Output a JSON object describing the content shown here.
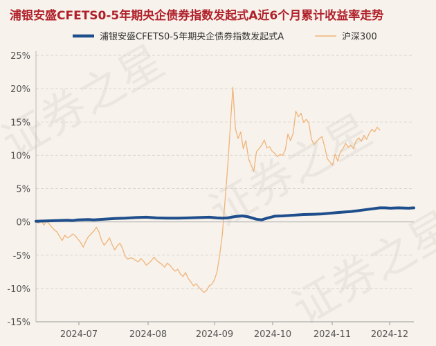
{
  "chart_data": {
    "type": "line",
    "title": "浦银安盛CFETS0-5年期央企债券指数发起式A近6个月累计收益率走势",
    "x_labels": [
      "2024-07",
      "2024-08",
      "2024-09",
      "2024-10",
      "2024-11",
      "2024-12"
    ],
    "yticks": [
      25,
      20,
      15,
      10,
      5,
      0,
      -5,
      -10,
      -15
    ],
    "ylim": [
      -15,
      25
    ],
    "y_unit": "%",
    "grid": "horizontal",
    "legend_position": "top",
    "watermark": "证券之星",
    "series": [
      {
        "name": "浦银安盛CFETS0-5年期央企债券指数发起式A",
        "color": "#1f4e8c",
        "points": [
          [
            0,
            0.1
          ],
          [
            20,
            0.15
          ],
          [
            40,
            0.2
          ],
          [
            60,
            0.25
          ],
          [
            70,
            0.2
          ],
          [
            80,
            0.3
          ],
          [
            100,
            0.35
          ],
          [
            110,
            0.3
          ],
          [
            130,
            0.4
          ],
          [
            150,
            0.5
          ],
          [
            170,
            0.55
          ],
          [
            190,
            0.65
          ],
          [
            210,
            0.7
          ],
          [
            230,
            0.6
          ],
          [
            250,
            0.55
          ],
          [
            270,
            0.55
          ],
          [
            290,
            0.6
          ],
          [
            310,
            0.65
          ],
          [
            330,
            0.7
          ],
          [
            345,
            0.6
          ],
          [
            355,
            0.55
          ],
          [
            365,
            0.6
          ],
          [
            380,
            0.8
          ],
          [
            393,
            0.9
          ],
          [
            405,
            0.75
          ],
          [
            420,
            0.4
          ],
          [
            430,
            0.3
          ],
          [
            440,
            0.55
          ],
          [
            455,
            0.85
          ],
          [
            470,
            0.9
          ],
          [
            490,
            1.0
          ],
          [
            510,
            1.1
          ],
          [
            530,
            1.15
          ],
          [
            545,
            1.2
          ],
          [
            560,
            1.3
          ],
          [
            575,
            1.4
          ],
          [
            590,
            1.5
          ],
          [
            600,
            1.55
          ],
          [
            615,
            1.7
          ],
          [
            630,
            1.85
          ],
          [
            645,
            2.0
          ],
          [
            655,
            2.1
          ],
          [
            665,
            2.1
          ],
          [
            675,
            2.05
          ],
          [
            690,
            2.1
          ],
          [
            710,
            2.05
          ],
          [
            720,
            2.1
          ]
        ]
      },
      {
        "name": "沪深300",
        "color": "#f0b47a",
        "points": [
          [
            0,
            0
          ],
          [
            5,
            -0.2
          ],
          [
            10,
            0.3
          ],
          [
            15,
            -0.5
          ],
          [
            20,
            0.1
          ],
          [
            25,
            -0.3
          ],
          [
            30,
            -0.8
          ],
          [
            35,
            -1.2
          ],
          [
            40,
            -1.5
          ],
          [
            45,
            -2.2
          ],
          [
            50,
            -2.8
          ],
          [
            55,
            -2.0
          ],
          [
            60,
            -2.4
          ],
          [
            65,
            -2.2
          ],
          [
            70,
            -1.8
          ],
          [
            75,
            -2.1
          ],
          [
            80,
            -2.6
          ],
          [
            85,
            -3.1
          ],
          [
            90,
            -3.8
          ],
          [
            95,
            -2.9
          ],
          [
            100,
            -2.2
          ],
          [
            105,
            -1.8
          ],
          [
            110,
            -1.4
          ],
          [
            115,
            -0.8
          ],
          [
            120,
            -1.5
          ],
          [
            125,
            -2.8
          ],
          [
            130,
            -3.5
          ],
          [
            135,
            -3.0
          ],
          [
            140,
            -2.4
          ],
          [
            145,
            -3.4
          ],
          [
            150,
            -4.2
          ],
          [
            155,
            -3.6
          ],
          [
            160,
            -3.2
          ],
          [
            165,
            -4.0
          ],
          [
            170,
            -5.2
          ],
          [
            175,
            -5.6
          ],
          [
            180,
            -5.4
          ],
          [
            185,
            -5.5
          ],
          [
            190,
            -5.8
          ],
          [
            195,
            -6.0
          ],
          [
            200,
            -5.5
          ],
          [
            205,
            -5.9
          ],
          [
            210,
            -6.5
          ],
          [
            215,
            -6.2
          ],
          [
            220,
            -5.8
          ],
          [
            225,
            -5.3
          ],
          [
            230,
            -5.8
          ],
          [
            235,
            -6.1
          ],
          [
            240,
            -6.4
          ],
          [
            245,
            -6.8
          ],
          [
            250,
            -6.2
          ],
          [
            255,
            -6.5
          ],
          [
            260,
            -7.0
          ],
          [
            265,
            -7.4
          ],
          [
            270,
            -7.1
          ],
          [
            275,
            -7.8
          ],
          [
            280,
            -8.2
          ],
          [
            285,
            -7.6
          ],
          [
            290,
            -8.5
          ],
          [
            295,
            -9.0
          ],
          [
            300,
            -9.6
          ],
          [
            305,
            -9.3
          ],
          [
            310,
            -9.8
          ],
          [
            315,
            -10.2
          ],
          [
            320,
            -10.6
          ],
          [
            325,
            -10.3
          ],
          [
            330,
            -9.6
          ],
          [
            335,
            -9.4
          ],
          [
            340,
            -8.7
          ],
          [
            345,
            -7.5
          ],
          [
            350,
            -5.0
          ],
          [
            355,
            -2.0
          ],
          [
            360,
            3.0
          ],
          [
            365,
            8.0
          ],
          [
            370,
            14.0
          ],
          [
            375,
            20.2
          ],
          [
            380,
            14.0
          ],
          [
            385,
            12.5
          ],
          [
            390,
            13.5
          ],
          [
            395,
            11.0
          ],
          [
            400,
            12.2
          ],
          [
            405,
            9.5
          ],
          [
            410,
            8.5
          ],
          [
            415,
            7.6
          ],
          [
            420,
            10.5
          ],
          [
            425,
            11.0
          ],
          [
            430,
            11.5
          ],
          [
            435,
            12.3
          ],
          [
            440,
            11.1
          ],
          [
            445,
            11.3
          ],
          [
            450,
            10.6
          ],
          [
            455,
            10.3
          ],
          [
            460,
            9.8
          ],
          [
            465,
            10.1
          ],
          [
            470,
            10.0
          ],
          [
            475,
            10.8
          ],
          [
            480,
            13.2
          ],
          [
            485,
            12.2
          ],
          [
            490,
            13.3
          ],
          [
            495,
            16.6
          ],
          [
            500,
            15.8
          ],
          [
            505,
            16.3
          ],
          [
            510,
            14.9
          ],
          [
            515,
            15.4
          ],
          [
            520,
            14.8
          ],
          [
            525,
            12.4
          ],
          [
            530,
            11.6
          ],
          [
            535,
            12.1
          ],
          [
            540,
            12.5
          ],
          [
            545,
            12.8
          ],
          [
            550,
            11.3
          ],
          [
            555,
            9.5
          ],
          [
            560,
            9.0
          ],
          [
            565,
            8.5
          ],
          [
            570,
            10.2
          ],
          [
            575,
            9.1
          ],
          [
            580,
            10.5
          ],
          [
            585,
            11.0
          ],
          [
            590,
            11.8
          ],
          [
            595,
            11.2
          ],
          [
            600,
            11.5
          ],
          [
            605,
            11.0
          ],
          [
            610,
            12.2
          ],
          [
            615,
            12.6
          ],
          [
            620,
            12.1
          ],
          [
            625,
            13.0
          ],
          [
            630,
            12.4
          ],
          [
            635,
            13.3
          ],
          [
            640,
            13.9
          ],
          [
            645,
            13.5
          ],
          [
            650,
            14.2
          ],
          [
            655,
            13.8
          ]
        ]
      }
    ]
  }
}
